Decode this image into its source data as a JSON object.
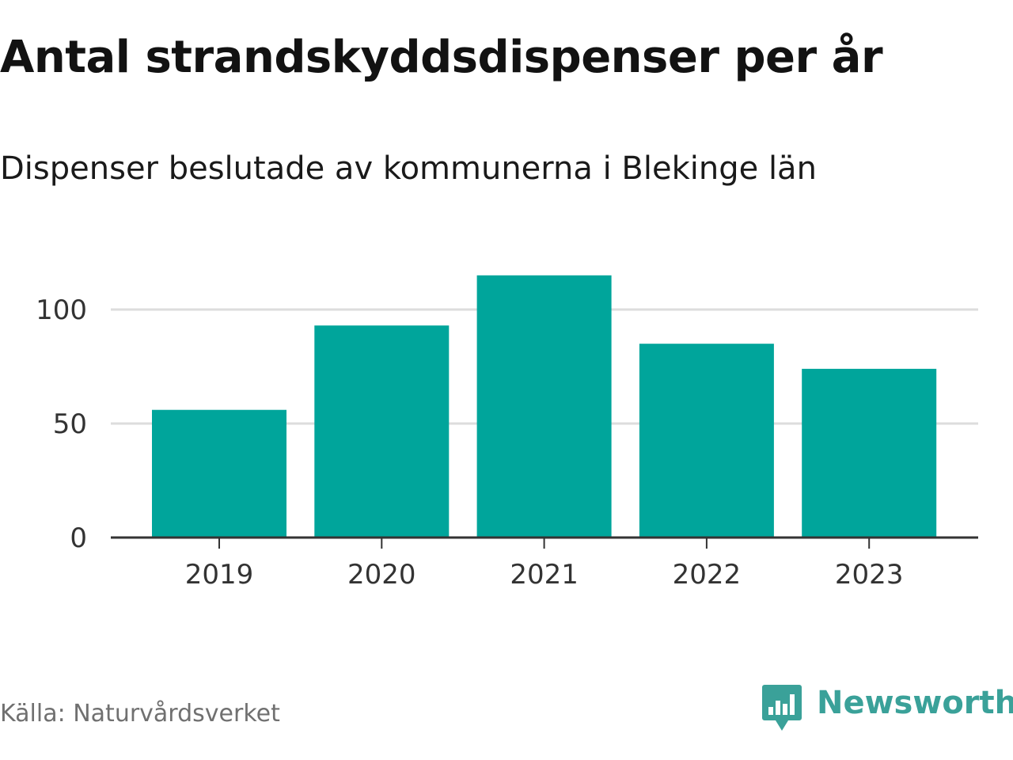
{
  "header": {
    "title": "Antal strandskyddsdispenser per år",
    "subtitle": "Dispenser beslutade av kommunerna i Blekinge län"
  },
  "footer": {
    "source": "Källa: Naturvårdsverket",
    "brand": "Newsworthy"
  },
  "colors": {
    "bar": "#00a59b",
    "grid": "#dddddd",
    "axis": "#333333",
    "brand": "#3aa199"
  },
  "chart_data": {
    "type": "bar",
    "title": "Antal strandskyddsdispenser per år",
    "subtitle": "Dispenser beslutade av kommunerna i Blekinge län",
    "categories": [
      "2019",
      "2020",
      "2021",
      "2022",
      "2023"
    ],
    "values": [
      56,
      93,
      115,
      85,
      74
    ],
    "xlabel": "",
    "ylabel": "",
    "ylim": [
      0,
      120
    ],
    "yticks": [
      0,
      50,
      100
    ],
    "grid": true
  }
}
